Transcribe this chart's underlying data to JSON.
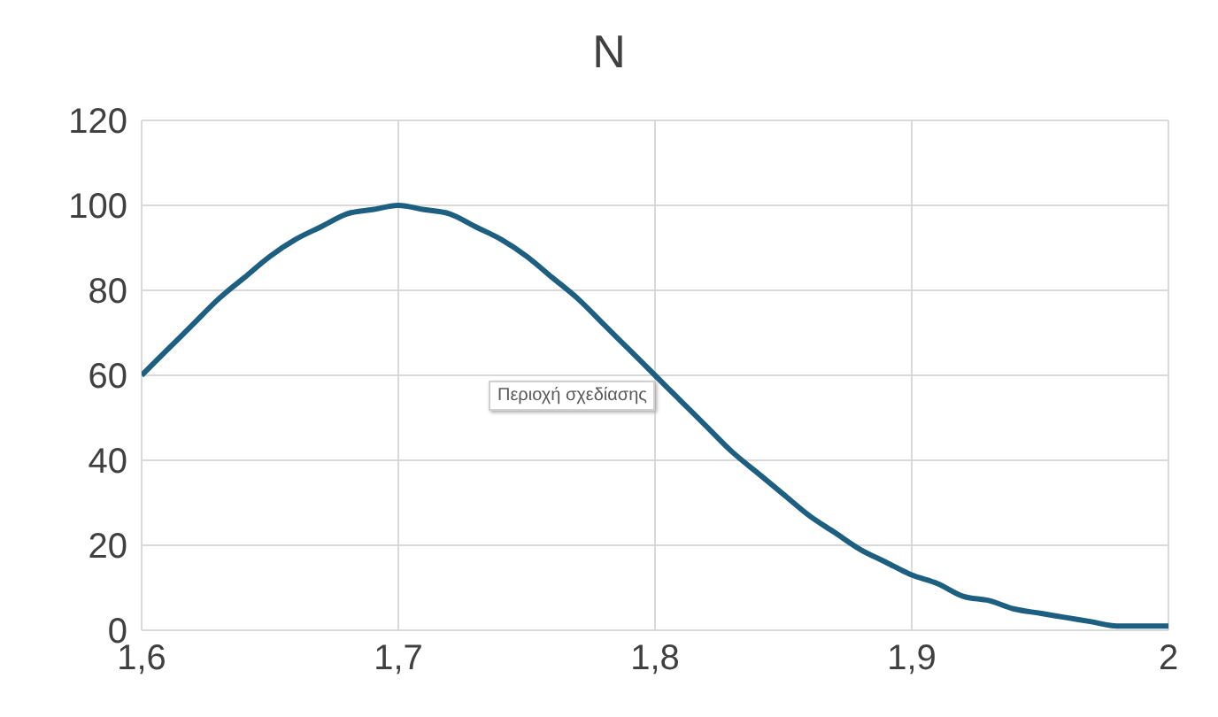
{
  "chart_data": {
    "type": "line",
    "title": "N",
    "x": [
      1.6,
      1.61,
      1.62,
      1.63,
      1.64,
      1.65,
      1.66,
      1.67,
      1.68,
      1.69,
      1.7,
      1.71,
      1.72,
      1.73,
      1.74,
      1.75,
      1.76,
      1.77,
      1.78,
      1.79,
      1.8,
      1.81,
      1.82,
      1.83,
      1.84,
      1.85,
      1.86,
      1.87,
      1.88,
      1.89,
      1.9,
      1.91,
      1.92,
      1.93,
      1.94,
      1.95,
      1.96,
      1.97,
      1.98,
      1.99,
      2
    ],
    "series": [
      {
        "color": "#1d5f80",
        "values": [
          60,
          66,
          72,
          78,
          83,
          88,
          92,
          95,
          98,
          99,
          100,
          99,
          98,
          95,
          92,
          88,
          83,
          78,
          72,
          66,
          60,
          54,
          48,
          42,
          37,
          32,
          27,
          23,
          19,
          16,
          13,
          11,
          8,
          7,
          5,
          4,
          3,
          2,
          1,
          1,
          1
        ]
      }
    ],
    "xlim": [
      1.6,
      2
    ],
    "xticks": [
      {
        "value": 1.6,
        "label": "1,6"
      },
      {
        "value": 1.7,
        "label": "1,7"
      },
      {
        "value": 1.8,
        "label": "1,8"
      },
      {
        "value": 1.9,
        "label": "1,9"
      },
      2
    ],
    "ylim": [
      0,
      120
    ],
    "yticks": [
      0,
      20,
      40,
      60,
      80,
      100,
      120
    ],
    "grid": true,
    "marker": "none",
    "line_style": "solid",
    "annotations": [
      "Περιοχή σχεδίασης"
    ]
  }
}
